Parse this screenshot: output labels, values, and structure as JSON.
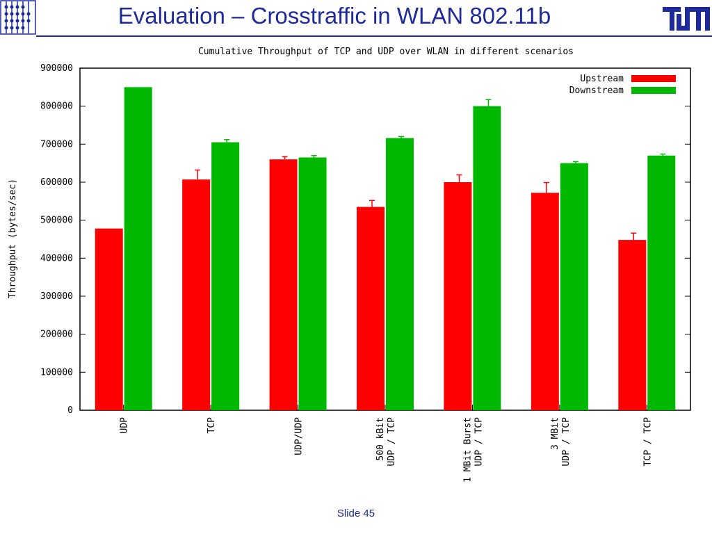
{
  "slide": {
    "title": "Evaluation – Crosstraffic in WLAN 802.11b",
    "footer": "Slide 45"
  },
  "logos": {
    "left": "institute-logo-icon",
    "right": "tum-logo-icon",
    "right_text": "TUM",
    "color": "#1e2a9a"
  },
  "chart_data": {
    "type": "bar",
    "title": "Cumulative Throughput of TCP and UDP over WLAN in different scenarios",
    "xlabel": "",
    "ylabel": "Throughput (bytes/sec)",
    "ylim": [
      0,
      900000
    ],
    "yticks": [
      0,
      100000,
      200000,
      300000,
      400000,
      500000,
      600000,
      700000,
      800000,
      900000
    ],
    "grid": false,
    "legend_position": "top-right",
    "categories": [
      [
        "UDP"
      ],
      [
        "TCP"
      ],
      [
        "UDP/UDP"
      ],
      [
        "500 kBit",
        "UDP / TCP"
      ],
      [
        "1 MBit Burst",
        "UDP / TCP"
      ],
      [
        "3 MBit",
        "UDP / TCP"
      ],
      [
        "TCP / TCP"
      ]
    ],
    "series": [
      {
        "name": "Upstream",
        "color": "#ff0000",
        "values": [
          478000,
          607000,
          660000,
          535000,
          600000,
          572000,
          448000
        ],
        "errors": [
          0,
          25000,
          7000,
          17000,
          19000,
          27000,
          18000
        ]
      },
      {
        "name": "Downstream",
        "color": "#00b800",
        "values": [
          850000,
          705000,
          665000,
          716000,
          800000,
          650000,
          670000
        ],
        "errors": [
          0,
          7000,
          5000,
          4000,
          17000,
          4000,
          4000
        ]
      }
    ]
  }
}
